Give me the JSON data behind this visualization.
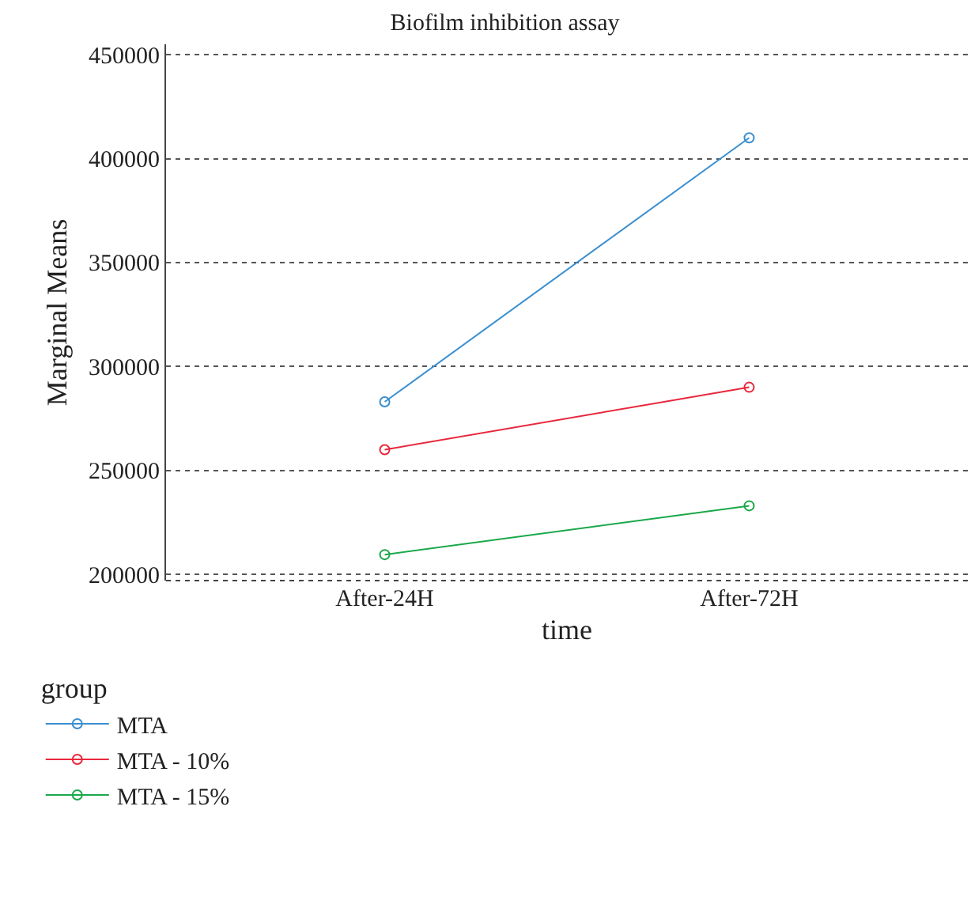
{
  "chart_data": {
    "type": "line",
    "title": "Biofilm inhibition assay",
    "xlabel": "time",
    "ylabel": "Marginal Means",
    "legend_title": "group",
    "categories": [
      "After-24H",
      "After-72H"
    ],
    "series": [
      {
        "name": "MTA",
        "color": "#3a8fd0",
        "values": [
          283000,
          410000
        ]
      },
      {
        "name": "MTA - 10%",
        "color": "#e8283c",
        "values": [
          260000,
          290000
        ]
      },
      {
        "name": "MTA - 15%",
        "color": "#1aa84a",
        "values": [
          209500,
          233000
        ]
      }
    ],
    "ylim": [
      197000,
      455000
    ],
    "yticks": [
      200000,
      250000,
      300000,
      350000,
      400000,
      450000
    ],
    "grid": "y",
    "legend": "bottom",
    "marker": "circle",
    "line_style": "solid"
  }
}
